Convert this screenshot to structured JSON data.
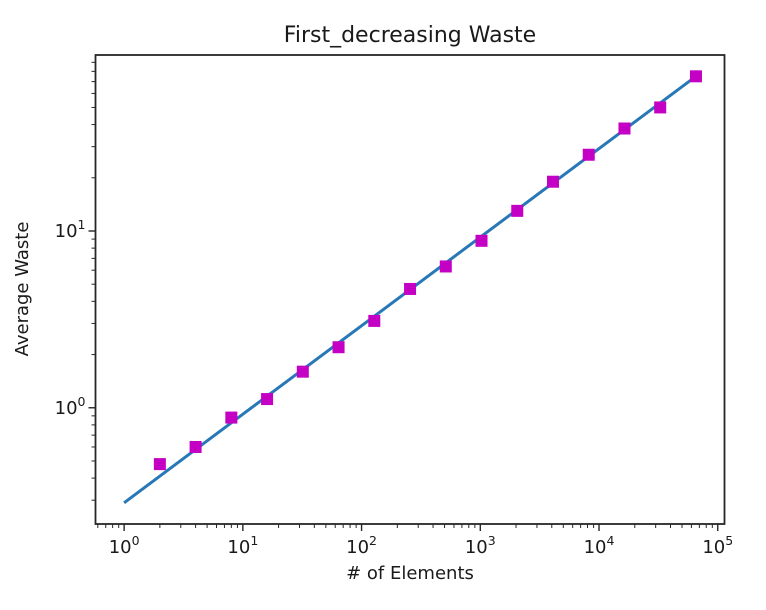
{
  "chart_data": {
    "type": "scatter",
    "title": "First_decreasing Waste",
    "xlabel": "# of Elements",
    "ylabel": "Average Waste",
    "xscale": "log",
    "yscale": "log",
    "xlim": [
      0.574,
      114000
    ],
    "ylim": [
      0.22,
      99
    ],
    "x_major_tick_labels": [
      "10^0",
      "10^1",
      "10^2",
      "10^3",
      "10^4",
      "10^5"
    ],
    "y_major_tick_labels": [
      "10^0",
      "10^1"
    ],
    "x_major_tick_exponents": [
      0,
      1,
      2,
      3,
      4,
      5
    ],
    "y_major_tick_exponents": [
      0,
      1
    ],
    "grid": false,
    "legend": null,
    "colors": {
      "fit_line": "#2878b8",
      "markers": "#c400c4",
      "axis": "#262626",
      "text": "#1a1a1a",
      "background": "#ffffff"
    },
    "series": [
      {
        "name": "fit_line",
        "type": "line",
        "x": [
          1,
          65536
        ],
        "y": [
          0.29,
          75
        ]
      },
      {
        "name": "average_waste",
        "type": "scatter",
        "marker": "square",
        "x": [
          2,
          4,
          8,
          16,
          32,
          64,
          128,
          256,
          512,
          1024,
          2048,
          4096,
          8192,
          16384,
          32768,
          65536
        ],
        "y": [
          0.48,
          0.6,
          0.88,
          1.12,
          1.6,
          2.2,
          3.1,
          4.7,
          6.3,
          8.8,
          13,
          19,
          27,
          38,
          50,
          75
        ]
      }
    ]
  }
}
